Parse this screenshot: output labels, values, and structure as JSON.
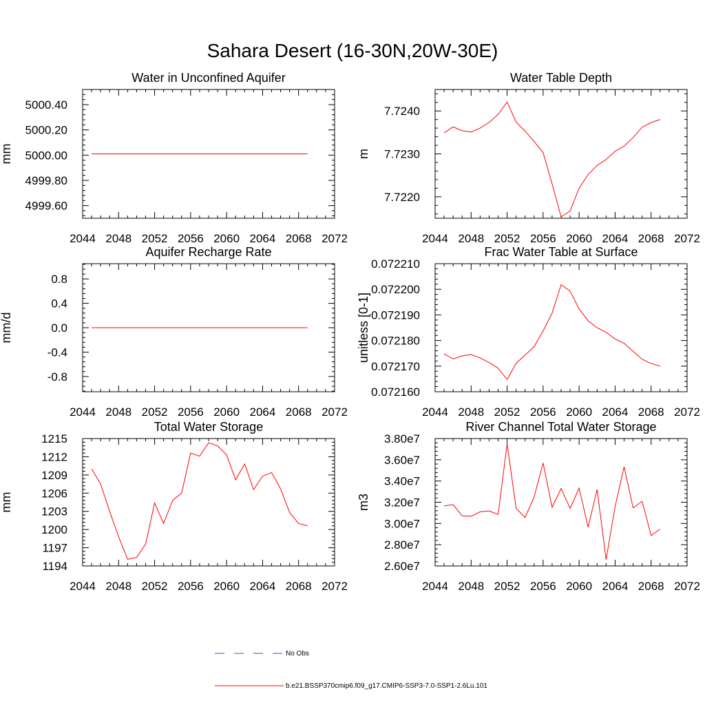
{
  "figure": {
    "title": "Sahara Desert (16-30N,20W-30E)"
  },
  "legend": {
    "entries": [
      {
        "label": "No Obs",
        "color": "#4a4ab8",
        "style": "dashed"
      },
      {
        "label": "b.e21.BSSP370cmip6.f09_g17.CMIP6-SSP3-7.0-SSP1-2.6Lu.101",
        "color": "#ff0000",
        "style": "solid"
      }
    ]
  },
  "chart_data": [
    {
      "type": "line",
      "title": "Water in Unconfined Aquifer",
      "xlabel": "",
      "ylabel": "mm",
      "xlim": [
        2044,
        2072
      ],
      "ylim": [
        4999.5,
        5000.52
      ],
      "xticks": [
        2044,
        2048,
        2052,
        2056,
        2060,
        2064,
        2068,
        2072
      ],
      "xtick_labels": [
        "2044",
        "2048",
        "2052",
        "2056",
        "2060",
        "2064",
        "2068",
        "2072"
      ],
      "yticks": [
        4999.6,
        4999.8,
        5000.0,
        5000.2,
        5000.4
      ],
      "ytick_labels": [
        "4999.60",
        "4999.80",
        "5000.00",
        "5000.20",
        "5000.40"
      ],
      "series": [
        {
          "color": "#ff0000",
          "x": [
            2045,
            2046,
            2047,
            2048,
            2049,
            2050,
            2051,
            2052,
            2053,
            2054,
            2055,
            2056,
            2057,
            2058,
            2059,
            2060,
            2061,
            2062,
            2063,
            2064,
            2065,
            2066,
            2067,
            2068,
            2069
          ],
          "y": [
            5000.01,
            5000.01,
            5000.01,
            5000.01,
            5000.01,
            5000.01,
            5000.01,
            5000.01,
            5000.01,
            5000.01,
            5000.01,
            5000.01,
            5000.01,
            5000.01,
            5000.01,
            5000.01,
            5000.01,
            5000.01,
            5000.01,
            5000.01,
            5000.01,
            5000.01,
            5000.01,
            5000.01,
            5000.01
          ]
        }
      ]
    },
    {
      "type": "line",
      "title": "Water Table Depth",
      "xlabel": "",
      "ylabel": "m",
      "xlim": [
        2044,
        2072
      ],
      "ylim": [
        7.7215,
        7.7245
      ],
      "xticks": [
        2044,
        2048,
        2052,
        2056,
        2060,
        2064,
        2068,
        2072
      ],
      "xtick_labels": [
        "2044",
        "2048",
        "2052",
        "2056",
        "2060",
        "2064",
        "2068",
        "2072"
      ],
      "yticks": [
        7.722,
        7.723,
        7.724
      ],
      "ytick_labels": [
        "7.7220",
        "7.7230",
        "7.7240"
      ],
      "series": [
        {
          "color": "#ff0000",
          "x": [
            2045,
            2046,
            2047,
            2048,
            2049,
            2050,
            2051,
            2052,
            2053,
            2054,
            2055,
            2056,
            2057,
            2058,
            2059,
            2060,
            2061,
            2062,
            2063,
            2064,
            2065,
            2066,
            2067,
            2068,
            2069
          ],
          "y": [
            7.72349,
            7.72363,
            7.72354,
            7.72351,
            7.7236,
            7.72373,
            7.72392,
            7.72421,
            7.72374,
            7.72353,
            7.72329,
            7.72303,
            7.7223,
            7.72153,
            7.72167,
            7.7222,
            7.72252,
            7.72273,
            7.72287,
            7.72306,
            7.72318,
            7.72338,
            7.72362,
            7.72373,
            7.7238
          ]
        }
      ]
    },
    {
      "type": "line",
      "title": "Aquifer Recharge Rate",
      "xlabel": "",
      "ylabel": "mm/d",
      "xlim": [
        2044,
        2072
      ],
      "ylim": [
        -1.05,
        1.05
      ],
      "xticks": [
        2044,
        2048,
        2052,
        2056,
        2060,
        2064,
        2068,
        2072
      ],
      "xtick_labels": [
        "2044",
        "2048",
        "2052",
        "2056",
        "2060",
        "2064",
        "2068",
        "2072"
      ],
      "yticks": [
        -0.8,
        -0.4,
        0.0,
        0.4,
        0.8
      ],
      "ytick_labels": [
        "-0.8",
        "-0.4",
        "0.0",
        "0.4",
        "0.8"
      ],
      "series": [
        {
          "color": "#ff0000",
          "x": [
            2045,
            2046,
            2047,
            2048,
            2049,
            2050,
            2051,
            2052,
            2053,
            2054,
            2055,
            2056,
            2057,
            2058,
            2059,
            2060,
            2061,
            2062,
            2063,
            2064,
            2065,
            2066,
            2067,
            2068,
            2069
          ],
          "y": [
            0,
            0,
            0,
            0,
            0,
            0,
            0,
            0,
            0,
            0,
            0,
            0,
            0,
            0,
            0,
            0,
            0,
            0,
            0,
            0,
            0,
            0,
            0,
            0,
            0
          ]
        }
      ]
    },
    {
      "type": "line",
      "title": "Frac Water Table at Surface",
      "xlabel": "",
      "ylabel": "unitless [0-1]",
      "xlim": [
        2044,
        2072
      ],
      "ylim": [
        0.07216,
        0.07221
      ],
      "xticks": [
        2044,
        2048,
        2052,
        2056,
        2060,
        2064,
        2068,
        2072
      ],
      "xtick_labels": [
        "2044",
        "2048",
        "2052",
        "2056",
        "2060",
        "2064",
        "2068",
        "2072"
      ],
      "yticks": [
        0.07216,
        0.07217,
        0.07218,
        0.07219,
        0.0722,
        0.07221
      ],
      "ytick_labels": [
        "0.072160",
        "0.072170",
        "0.072180",
        "0.072190",
        "0.072200",
        "0.072210"
      ],
      "series": [
        {
          "color": "#ff0000",
          "x": [
            2045,
            2046,
            2047,
            2048,
            2049,
            2050,
            2051,
            2052,
            2053,
            2054,
            2055,
            2056,
            2057,
            2058,
            2059,
            2060,
            2061,
            2062,
            2063,
            2064,
            2065,
            2066,
            2067,
            2068,
            2069
          ],
          "y": [
            0.0721748,
            0.0721728,
            0.072174,
            0.0721745,
            0.0721732,
            0.0721714,
            0.0721692,
            0.0721648,
            0.0721711,
            0.0721743,
            0.0721776,
            0.0721838,
            0.0721907,
            0.0722018,
            0.0721993,
            0.0721923,
            0.0721877,
            0.072185,
            0.0721832,
            0.0721806,
            0.0721789,
            0.0721758,
            0.0721727,
            0.072171,
            0.07217
          ]
        }
      ]
    },
    {
      "type": "line",
      "title": "Total Water Storage",
      "xlabel": "",
      "ylabel": "mm",
      "xlim": [
        2044,
        2072
      ],
      "ylim": [
        1194,
        1215
      ],
      "xticks": [
        2044,
        2048,
        2052,
        2056,
        2060,
        2064,
        2068,
        2072
      ],
      "xtick_labels": [
        "2044",
        "2048",
        "2052",
        "2056",
        "2060",
        "2064",
        "2068",
        "2072"
      ],
      "yticks": [
        1194,
        1197,
        1200,
        1203,
        1206,
        1209,
        1212,
        1215
      ],
      "ytick_labels": [
        "1194",
        "1197",
        "1200",
        "1203",
        "1206",
        "1209",
        "1212",
        "1215"
      ],
      "series": [
        {
          "color": "#ff0000",
          "x": [
            2045,
            2046,
            2047,
            2048,
            2049,
            2050,
            2051,
            2052,
            2053,
            2054,
            2055,
            2056,
            2057,
            2058,
            2059,
            2060,
            2061,
            2062,
            2063,
            2064,
            2065,
            2066,
            2067,
            2068,
            2069
          ],
          "y": [
            1210.0,
            1207.5,
            1203.0,
            1198.8,
            1195.1,
            1195.4,
            1197.6,
            1204.4,
            1201.0,
            1204.8,
            1206.0,
            1212.6,
            1212.1,
            1214.3,
            1213.8,
            1212.3,
            1208.2,
            1210.8,
            1206.6,
            1208.8,
            1209.4,
            1206.7,
            1202.8,
            1201.0,
            1200.6
          ]
        }
      ]
    },
    {
      "type": "line",
      "title": "River Channel Total Water Storage",
      "xlabel": "",
      "ylabel": "m3",
      "xlim": [
        2044,
        2072
      ],
      "ylim": [
        26000000,
        38000000
      ],
      "xticks": [
        2044,
        2048,
        2052,
        2056,
        2060,
        2064,
        2068,
        2072
      ],
      "xtick_labels": [
        "2044",
        "2048",
        "2052",
        "2056",
        "2060",
        "2064",
        "2068",
        "2072"
      ],
      "yticks": [
        26000000,
        28000000,
        30000000,
        32000000,
        34000000,
        36000000,
        38000000
      ],
      "ytick_labels": [
        "2.60e7",
        "2.80e7",
        "3.00e7",
        "3.20e7",
        "3.40e7",
        "3.60e7",
        "3.80e7"
      ],
      "series": [
        {
          "color": "#ff0000",
          "x": [
            2045,
            2046,
            2047,
            2048,
            2049,
            2050,
            2051,
            2052,
            2053,
            2054,
            2055,
            2056,
            2057,
            2058,
            2059,
            2060,
            2061,
            2062,
            2063,
            2064,
            2065,
            2066,
            2067,
            2068,
            2069
          ],
          "y": [
            31650000,
            31780000,
            30720000,
            30680000,
            31100000,
            31180000,
            30850000,
            37500000,
            31430000,
            30560000,
            32500000,
            35700000,
            31520000,
            33300000,
            31420000,
            33330000,
            29650000,
            33200000,
            26600000,
            31600000,
            35350000,
            31470000,
            32080000,
            28870000,
            29470000
          ]
        }
      ]
    }
  ]
}
